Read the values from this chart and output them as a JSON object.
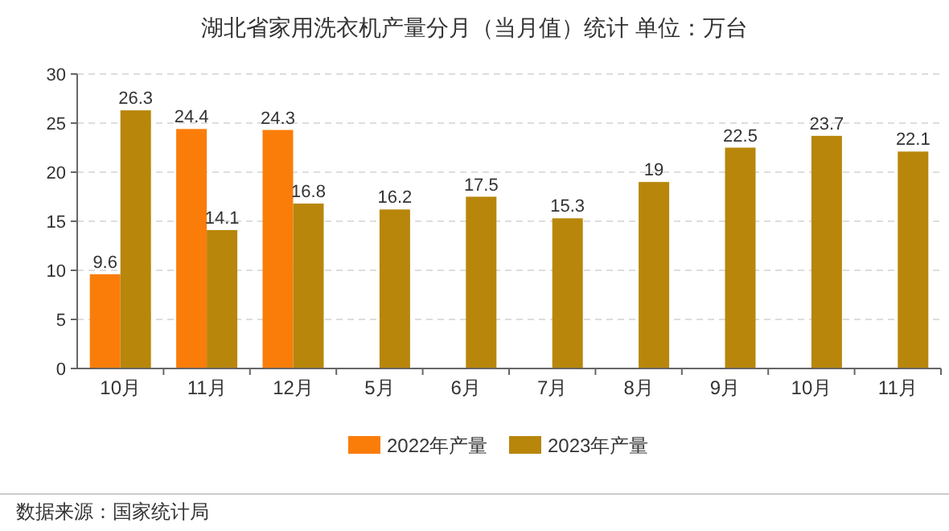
{
  "chart_data": {
    "type": "bar",
    "title": "湖北省家用洗衣机产量分月（当月值）统计  单位：万台",
    "categories": [
      "10月",
      "11月",
      "12月",
      "5月",
      "6月",
      "7月",
      "8月",
      "9月",
      "10月",
      "11月"
    ],
    "series": [
      {
        "name": "2022年产量",
        "color": "#fa7d0a",
        "values": [
          9.6,
          24.4,
          24.3,
          null,
          null,
          null,
          null,
          null,
          null,
          null
        ]
      },
      {
        "name": "2023年产量",
        "color": "#b8860b",
        "values": [
          26.3,
          14.1,
          16.8,
          16.2,
          17.5,
          15.3,
          19,
          22.5,
          23.7,
          22.1
        ]
      }
    ],
    "ylim": [
      0,
      30
    ],
    "yticks": [
      0,
      5,
      10,
      15,
      20,
      25,
      30
    ],
    "grid": "y",
    "legend": "bottom",
    "data_labels": true,
    "annotations": [
      "数据来源：国家统计局"
    ]
  }
}
